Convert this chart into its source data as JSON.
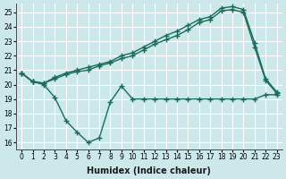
{
  "xlabel": "Humidex (Indice chaleur)",
  "bg_color": "#cce8ea",
  "grid_color": "#ffffff",
  "line_color": "#1a6b5a",
  "xlim": [
    -0.5,
    23.5
  ],
  "ylim": [
    15.5,
    25.6
  ],
  "yticks": [
    16,
    17,
    18,
    19,
    20,
    21,
    22,
    23,
    24,
    25
  ],
  "xticks": [
    0,
    1,
    2,
    3,
    4,
    5,
    6,
    7,
    8,
    9,
    10,
    11,
    12,
    13,
    14,
    15,
    16,
    17,
    18,
    19,
    20,
    21,
    22,
    23
  ],
  "line1_x": [
    0,
    1,
    2,
    3,
    4,
    5,
    6,
    7,
    8,
    9,
    10,
    11,
    12,
    13,
    14,
    15,
    16,
    17,
    18,
    19,
    20,
    21,
    22,
    23
  ],
  "line1_y": [
    20.8,
    20.2,
    20.1,
    20.5,
    20.8,
    21.0,
    21.2,
    21.4,
    21.6,
    22.0,
    22.2,
    22.6,
    23.0,
    23.4,
    23.7,
    24.1,
    24.5,
    24.7,
    25.3,
    25.4,
    25.2,
    22.9,
    20.4,
    19.5
  ],
  "line2_x": [
    0,
    1,
    2,
    3,
    4,
    5,
    6,
    7,
    8,
    9,
    10,
    11,
    12,
    13,
    14,
    15,
    16,
    17,
    18,
    19,
    20,
    21,
    22,
    23
  ],
  "line2_y": [
    20.8,
    20.2,
    20.1,
    20.4,
    20.7,
    20.9,
    21.0,
    21.3,
    21.5,
    21.8,
    22.0,
    22.4,
    22.8,
    23.1,
    23.4,
    23.8,
    24.3,
    24.5,
    25.1,
    25.2,
    25.0,
    22.6,
    20.3,
    19.4
  ],
  "line3_x": [
    0,
    1,
    2,
    3,
    4,
    5,
    6,
    7,
    8,
    9,
    10,
    11,
    12,
    13,
    14,
    15,
    16,
    17,
    18,
    19,
    20,
    21,
    22,
    23
  ],
  "line3_y": [
    20.8,
    20.2,
    20.0,
    19.1,
    17.5,
    16.7,
    16.0,
    16.3,
    18.8,
    19.9,
    19.0,
    19.0,
    19.0,
    19.0,
    19.0,
    19.0,
    19.0,
    19.0,
    19.0,
    19.0,
    19.0,
    19.0,
    19.3,
    19.3
  ],
  "marker_size": 3.0,
  "line_width": 1.0,
  "tick_fontsize": 5.5,
  "label_fontsize": 7.0
}
